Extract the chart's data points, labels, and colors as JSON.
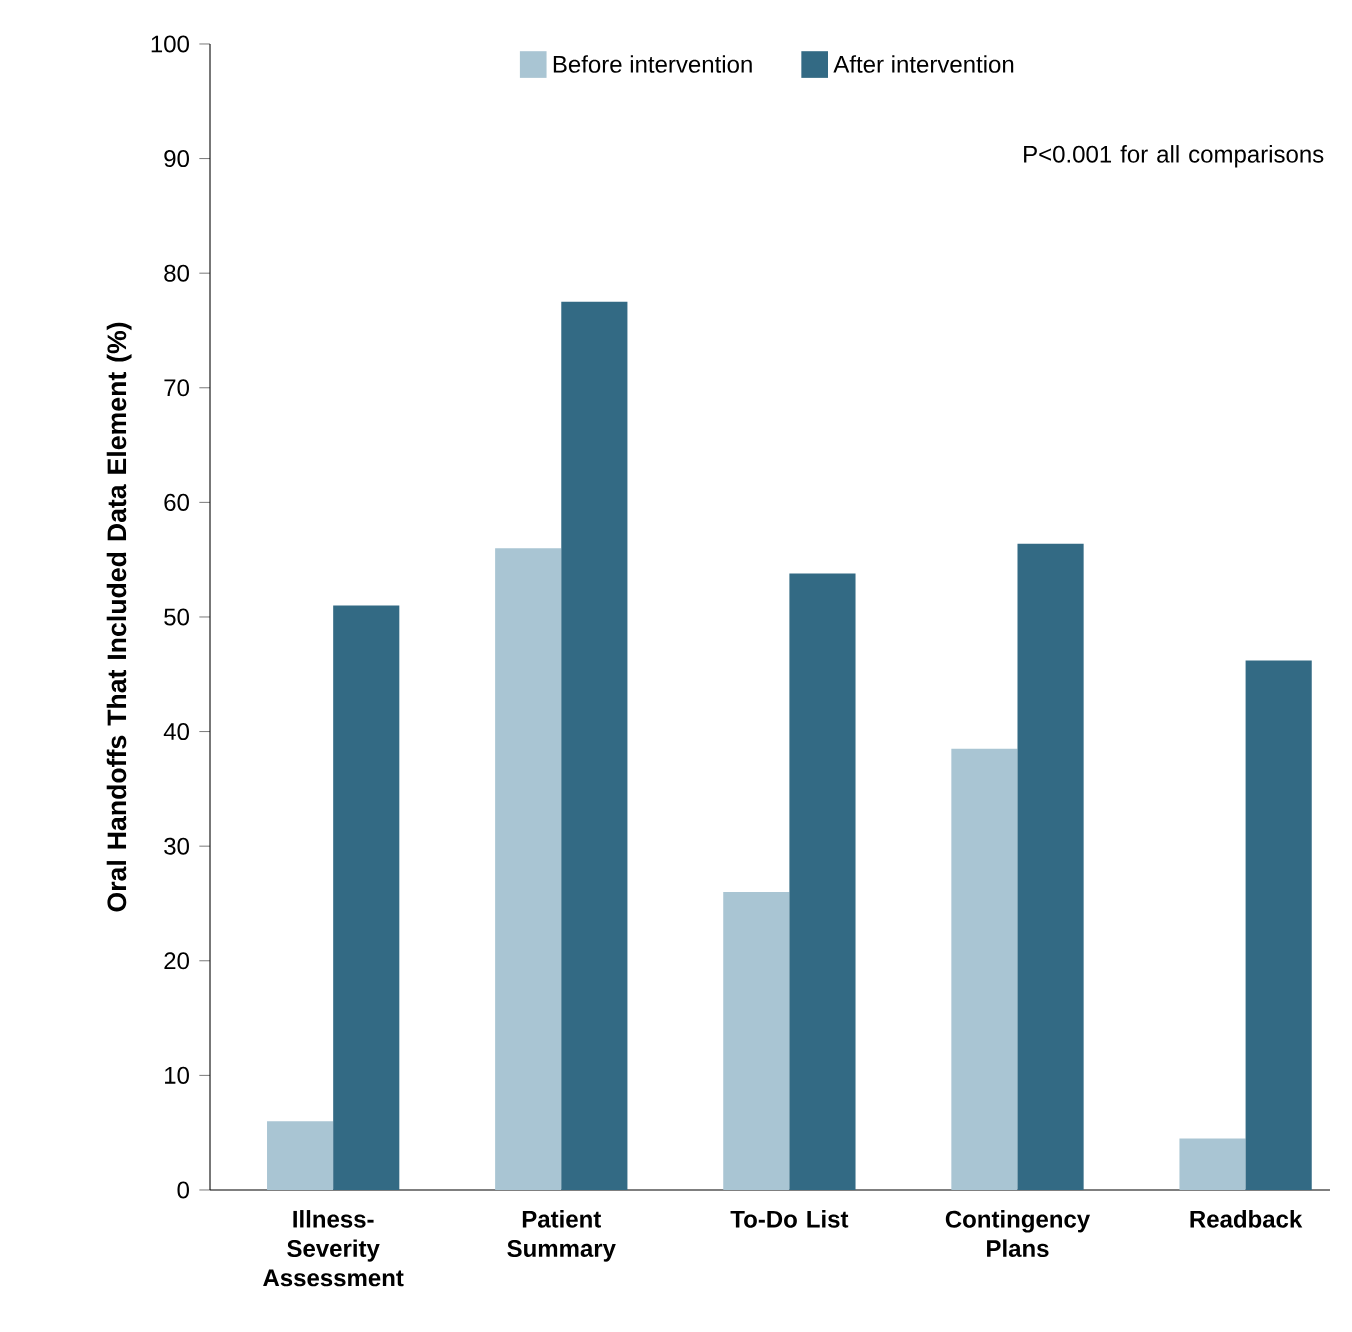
{
  "chart_data": {
    "type": "bar",
    "ylabel": "Oral Handoffs That Included Data Element (%)",
    "categories": [
      "Illness-Severity Assessment",
      "Patient Summary",
      "To-Do List",
      "Contingency Plans",
      "Readback"
    ],
    "series": [
      {
        "name": "Before intervention",
        "color": "#a9c5d3",
        "values": [
          6,
          56,
          26,
          38.5,
          4.5
        ]
      },
      {
        "name": "After intervention",
        "color": "#336a84",
        "values": [
          51,
          77.5,
          53.8,
          56.4,
          46.2
        ]
      }
    ],
    "ylim": [
      0,
      100
    ],
    "yticks": [
      0,
      10,
      20,
      30,
      40,
      50,
      60,
      70,
      80,
      90,
      100
    ],
    "legend": "top",
    "grid": false,
    "annotations": [
      "P<0.001 for all comparisons"
    ]
  }
}
